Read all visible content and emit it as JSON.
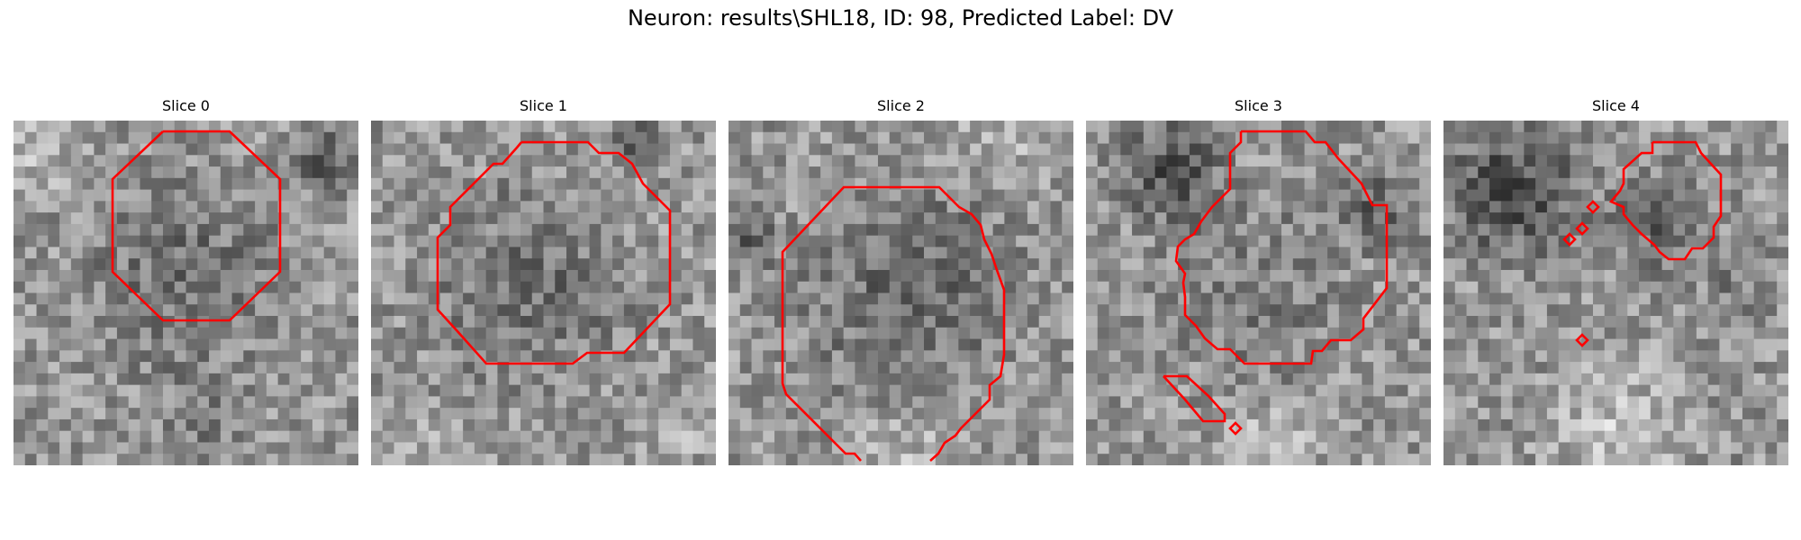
{
  "figure": {
    "title": "Neuron: results\\SHL18, ID: 98, Predicted Label: DV"
  },
  "colors": {
    "contour": "#ff0000",
    "background": "#ffffff"
  },
  "panels": [
    {
      "title": "Slice 0"
    },
    {
      "title": "Slice 1"
    },
    {
      "title": "Slice 2"
    },
    {
      "title": "Slice 3"
    },
    {
      "title": "Slice 4"
    }
  ]
}
